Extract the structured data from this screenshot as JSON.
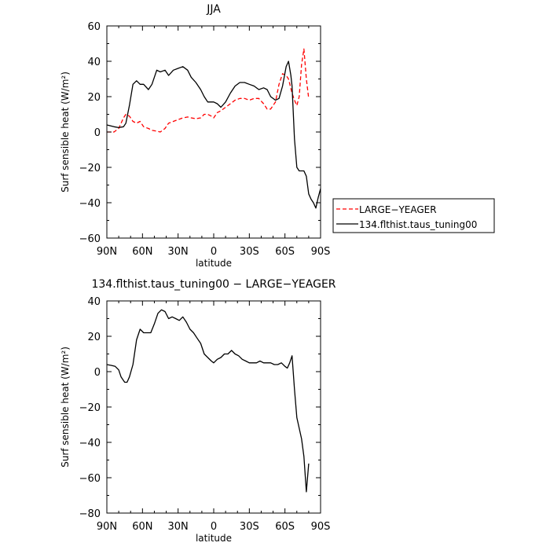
{
  "chart_data": [
    {
      "type": "line",
      "title": "JJA",
      "xlabel": "latitude",
      "ylabel": "Surf sensible heat (W/m²)",
      "xlim": [
        90,
        -90
      ],
      "ylim": [
        -60,
        60
      ],
      "x_ticks": [
        90,
        60,
        30,
        0,
        -30,
        -60,
        -90
      ],
      "x_tick_labels": [
        "90N",
        "60N",
        "30N",
        "0",
        "30S",
        "60S",
        "90S"
      ],
      "y_ticks": [
        -60,
        -40,
        -20,
        0,
        20,
        40,
        60
      ],
      "y_tick_labels": [
        "−60",
        "−40",
        "−20",
        "0",
        "20",
        "40",
        "60"
      ],
      "legend": "outside-right",
      "series": [
        {
          "name": "LARGE−YEAGER",
          "color": "#ff0000",
          "dash": "dashed",
          "x": [
            90,
            84,
            80,
            76,
            74,
            71,
            68,
            65,
            62,
            59,
            55,
            52,
            48,
            45,
            41,
            38,
            34,
            30,
            26,
            22,
            19,
            15,
            11,
            8,
            5,
            2,
            0,
            -3,
            -6,
            -10,
            -14,
            -18,
            -22,
            -26,
            -30,
            -34,
            -38,
            -42,
            -45,
            -48,
            -52,
            -55,
            -58,
            -61,
            -63,
            -66,
            -68,
            -70,
            -72,
            -74,
            -76,
            -78,
            -80
          ],
          "y": [
            0,
            0,
            2,
            8,
            10,
            9,
            6,
            5,
            6,
            3,
            2,
            1,
            0.5,
            0,
            2,
            5,
            6,
            7,
            8,
            8.5,
            8,
            7.5,
            8,
            10,
            10,
            9,
            8,
            11,
            12,
            14,
            16,
            18,
            19,
            19,
            18,
            19,
            19,
            16,
            13,
            13,
            17,
            27,
            33,
            32,
            30,
            22,
            18,
            15,
            20,
            38,
            47,
            30,
            19
          ]
        },
        {
          "name": "134.flthist.taus_tuning00",
          "color": "#000000",
          "dash": "solid",
          "x": [
            90,
            84,
            80,
            76,
            74,
            71,
            68,
            65,
            62,
            59,
            55,
            52,
            48,
            45,
            41,
            38,
            34,
            30,
            26,
            22,
            19,
            15,
            11,
            8,
            5,
            2,
            0,
            -3,
            -6,
            -10,
            -14,
            -18,
            -22,
            -26,
            -30,
            -34,
            -38,
            -42,
            -45,
            -48,
            -52,
            -55,
            -58,
            -61,
            -63,
            -65,
            -66,
            -68,
            -70,
            -72,
            -74,
            -76,
            -78,
            -80,
            -82,
            -84,
            -86,
            -88,
            -90
          ],
          "y": [
            4,
            3,
            2.5,
            3,
            5,
            15,
            27,
            29,
            27,
            27,
            24,
            27,
            35,
            34,
            35,
            32,
            35,
            36,
            37,
            35,
            31,
            28,
            24,
            20,
            17,
            17,
            17,
            16,
            14,
            17,
            22,
            26,
            28,
            28,
            27,
            26,
            24,
            25,
            24,
            20,
            18,
            19,
            26,
            37,
            40,
            32,
            26,
            -4,
            -20,
            -22,
            -22,
            -22,
            -25,
            -35,
            -38,
            -40,
            -43,
            -37,
            -32
          ]
        }
      ]
    },
    {
      "type": "line",
      "title": "134.flthist.taus_tuning00 − LARGE−YEAGER",
      "xlabel": "latitude",
      "ylabel": "Surf sensible heat (W/m²)",
      "xlim": [
        90,
        -90
      ],
      "ylim": [
        -80,
        40
      ],
      "x_ticks": [
        90,
        60,
        30,
        0,
        -30,
        -60,
        -90
      ],
      "x_tick_labels": [
        "90N",
        "60N",
        "30N",
        "0",
        "30S",
        "60S",
        "90S"
      ],
      "y_ticks": [
        -80,
        -60,
        -40,
        -20,
        0,
        20,
        40
      ],
      "y_tick_labels": [
        "−80",
        "−60",
        "−40",
        "−20",
        "0",
        "20",
        "40"
      ],
      "series": [
        {
          "color": "#000000",
          "dash": "solid",
          "x": [
            90,
            86,
            83,
            80,
            78,
            75,
            73,
            71,
            68,
            65,
            62,
            59,
            56,
            53,
            50,
            47,
            44,
            41,
            38,
            35,
            32,
            29,
            26,
            23,
            20,
            17,
            14,
            11,
            8,
            5,
            2,
            0,
            -3,
            -6,
            -9,
            -12,
            -15,
            -18,
            -21,
            -24,
            -27,
            -30,
            -33,
            -36,
            -39,
            -42,
            -45,
            -48,
            -51,
            -54,
            -57,
            -60,
            -62,
            -64,
            -66,
            -68,
            -70,
            -72,
            -74,
            -76,
            -78,
            -80
          ],
          "y": [
            4,
            3.5,
            3,
            1,
            -3,
            -6,
            -6,
            -3,
            4,
            18,
            24,
            22,
            22,
            22,
            27,
            33,
            35,
            34,
            30,
            31,
            30,
            29,
            31,
            28,
            24,
            22,
            19,
            16,
            10,
            8,
            6,
            5,
            7,
            8,
            10,
            10,
            12,
            10,
            9,
            7,
            6,
            5,
            5,
            5,
            6,
            5,
            5,
            5,
            4,
            4,
            5,
            3,
            2,
            5,
            9,
            -10,
            -26,
            -32,
            -38,
            -48,
            -68,
            -52
          ]
        }
      ]
    }
  ]
}
